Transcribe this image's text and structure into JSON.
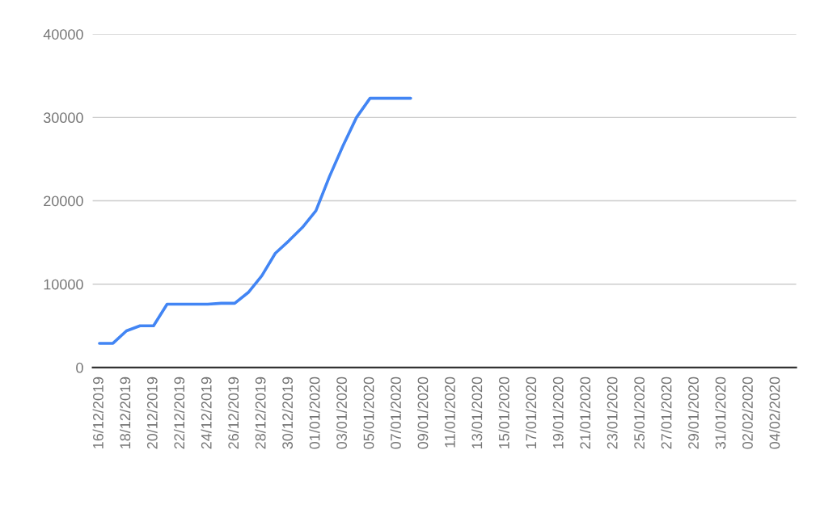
{
  "chart_data": {
    "type": "line",
    "x": [
      "2019-12-16",
      "2019-12-17",
      "2019-12-18",
      "2019-12-19",
      "2019-12-20",
      "2019-12-21",
      "2019-12-22",
      "2019-12-23",
      "2019-12-24",
      "2019-12-25",
      "2019-12-26",
      "2019-12-27",
      "2019-12-28",
      "2019-12-29",
      "2019-12-30",
      "2019-12-31",
      "2020-01-01",
      "2020-01-02",
      "2020-01-03",
      "2020-01-04",
      "2020-01-05",
      "2020-01-06",
      "2020-01-07",
      "2020-01-08"
    ],
    "series": [
      {
        "color": "#4285f4",
        "values": [
          2900,
          2900,
          4400,
          5000,
          5000,
          7600,
          7600,
          7600,
          7600,
          7700,
          7700,
          9000,
          11000,
          13700,
          15200,
          16800,
          18800,
          22900,
          26600,
          30000,
          32300,
          32300,
          32300,
          32300
        ]
      }
    ],
    "xlim": [
      "2019-12-15T12:00",
      "2020-02-05T12:00"
    ],
    "xticks": [
      {
        "value": "2019-12-16",
        "label": "16/12/2019"
      },
      {
        "value": "2019-12-18",
        "label": "18/12/2019"
      },
      {
        "value": "2019-12-20",
        "label": "20/12/2019"
      },
      {
        "value": "2019-12-22",
        "label": "22/12/2019"
      },
      {
        "value": "2019-12-24",
        "label": "24/12/2019"
      },
      {
        "value": "2019-12-26",
        "label": "26/12/2019"
      },
      {
        "value": "2019-12-28",
        "label": "28/12/2019"
      },
      {
        "value": "2019-12-30",
        "label": "30/12/2019"
      },
      {
        "value": "2020-01-01",
        "label": "01/01/2020"
      },
      {
        "value": "2020-01-03",
        "label": "03/01/2020"
      },
      {
        "value": "2020-01-05",
        "label": "05/01/2020"
      },
      {
        "value": "2020-01-07",
        "label": "07/01/2020"
      },
      {
        "value": "2020-01-09",
        "label": "09/01/2020"
      },
      {
        "value": "2020-01-11",
        "label": "11/01/2020"
      },
      {
        "value": "2020-01-13",
        "label": "13/01/2020"
      },
      {
        "value": "2020-01-15",
        "label": "15/01/2020"
      },
      {
        "value": "2020-01-17",
        "label": "17/01/2020"
      },
      {
        "value": "2020-01-19",
        "label": "19/01/2020"
      },
      {
        "value": "2020-01-21",
        "label": "21/01/2020"
      },
      {
        "value": "2020-01-23",
        "label": "23/01/2020"
      },
      {
        "value": "2020-01-25",
        "label": "25/01/2020"
      },
      {
        "value": "2020-01-27",
        "label": "27/01/2020"
      },
      {
        "value": "2020-01-29",
        "label": "29/01/2020"
      },
      {
        "value": "2020-01-31",
        "label": "31/01/2020"
      },
      {
        "value": "2020-02-02",
        "label": "02/02/2020"
      },
      {
        "value": "2020-02-04",
        "label": "04/02/2020"
      }
    ],
    "ylim": [
      0,
      40000
    ],
    "yticks": [
      0,
      10000,
      20000,
      30000,
      40000
    ],
    "grid": "y",
    "marker": "none",
    "line_style": "solid"
  }
}
